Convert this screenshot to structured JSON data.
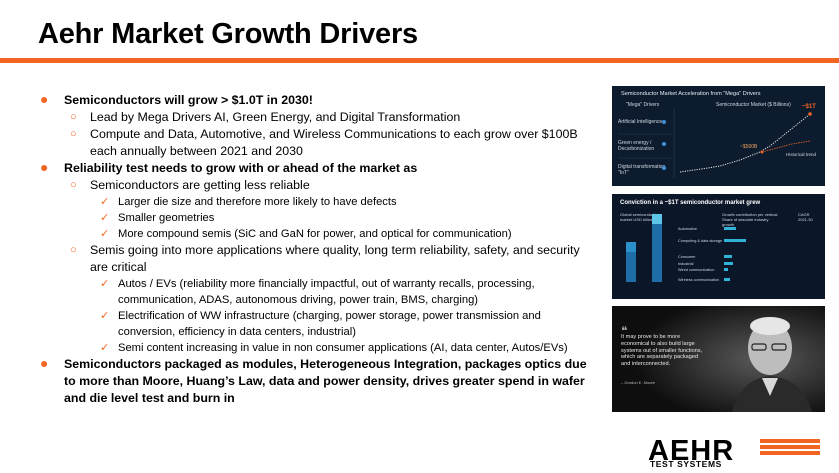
{
  "title": "Aehr Market Growth Drivers",
  "bullets": [
    {
      "level": 1,
      "text": "Semiconductors will grow > $1.0T in 2030!"
    },
    {
      "level": 2,
      "text": "Lead by Mega Drivers AI, Green Energy, and Digital Transformation"
    },
    {
      "level": 2,
      "text": "Compute and Data, Automotive, and Wireless Communications to each grow over $100B each annually between 2021 and 2030"
    },
    {
      "level": 1,
      "text": "Reliability test needs to grow with or ahead of the market as"
    },
    {
      "level": 2,
      "text": "Semiconductors are getting less reliable"
    },
    {
      "level": 3,
      "text": "Larger die size and therefore more likely to have defects"
    },
    {
      "level": 3,
      "text": "Smaller geometries"
    },
    {
      "level": 3,
      "text": "More compound semis (SiC and GaN for power, and optical for communication)"
    },
    {
      "level": 2,
      "text": "Semis going into more applications where quality, long term reliability, safety, and security are critical"
    },
    {
      "level": 3,
      "text": "Autos / EVs (reliability more financially impactful, out of warranty recalls, processing, communication, ADAS, autonomous driving, power train, BMS, charging)"
    },
    {
      "level": 3,
      "text": "Electrification of WW infrastructure (charging, power storage, power transmission and conversion, efficiency in data centers, industrial)"
    },
    {
      "level": 3,
      "text": "Semi content increasing in value in non consumer applications (AI, data center, Autos/EVs)"
    },
    {
      "level": 1,
      "text": "Semiconductors packaged as modules, Heterogeneous Integration, packages optics due to more than Moore, Huang’s Law, data and power density, drives greater spend in wafer and die level test and burn in"
    }
  ],
  "images": {
    "chart1": {
      "title": "Semiconductor Market Acceleration from \"Mega\" Drivers",
      "left_header": "\"Mega\" Drivers",
      "right_header": "Semiconductor Market ($ Billions)",
      "drivers": [
        "Artificial Intelligence",
        "Green energy / Decarbonization",
        "Digital transformation \"IoT\""
      ],
      "callout_high": "~$1T",
      "callout_mid": "~$500B",
      "callout_note": "Historical trend"
    },
    "chart2": {
      "title": "Conviction in a ~$1T semiconductor market grew",
      "col1": "Global semiconductor market USD billions",
      "col2": "Growth contribution per vertical Share of absolute industry growth",
      "col3": "CAGR 2021-30",
      "rows": [
        "Automotive",
        "Computing & data storage",
        "Consumer",
        "Industrial",
        "Wired communication",
        "Wireless communication"
      ]
    },
    "photo": {
      "quote": "It may prove to be more economical to also build large systems out of smaller functions, which are separately packaged and interconnected.",
      "attribution": "– Gordon E. Moore"
    }
  },
  "logo": {
    "name": "AEHR",
    "tagline": "TEST SYSTEMS"
  },
  "colors": {
    "accent": "#f26522",
    "text": "#000000"
  }
}
